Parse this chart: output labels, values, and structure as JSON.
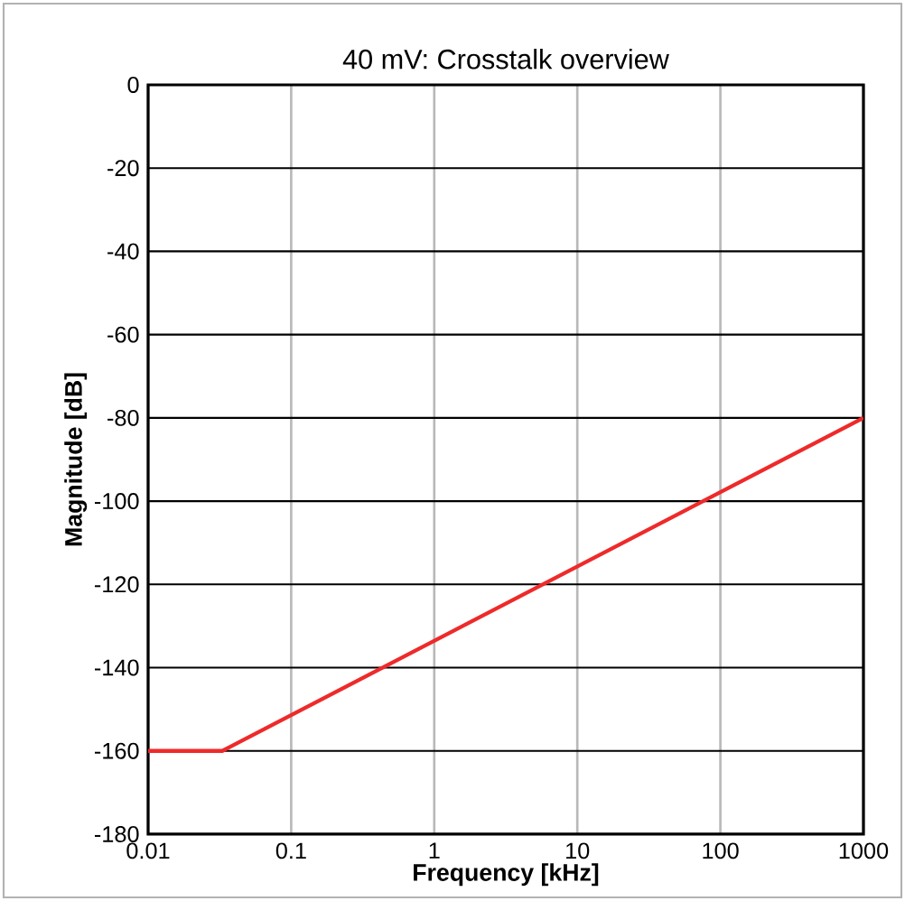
{
  "chart_data": {
    "type": "line",
    "title": "40 mV: Crosstalk overview",
    "xlabel": "Frequency [kHz]",
    "ylabel": "Magnitude [dB]",
    "x": [
      0.01,
      0.033,
      1000
    ],
    "values": [
      -160,
      -160,
      -80
    ],
    "color": "#ee2a2a",
    "log": "x",
    "grid": true,
    "xlim": [
      0.01,
      1000
    ],
    "ylim": [
      -180,
      0
    ],
    "xticks": [
      0.01,
      0.1,
      1,
      10,
      100,
      1000
    ],
    "yticks": [
      -180,
      -160,
      -140,
      -120,
      -100,
      -80,
      -60,
      -40,
      -20,
      0
    ]
  }
}
